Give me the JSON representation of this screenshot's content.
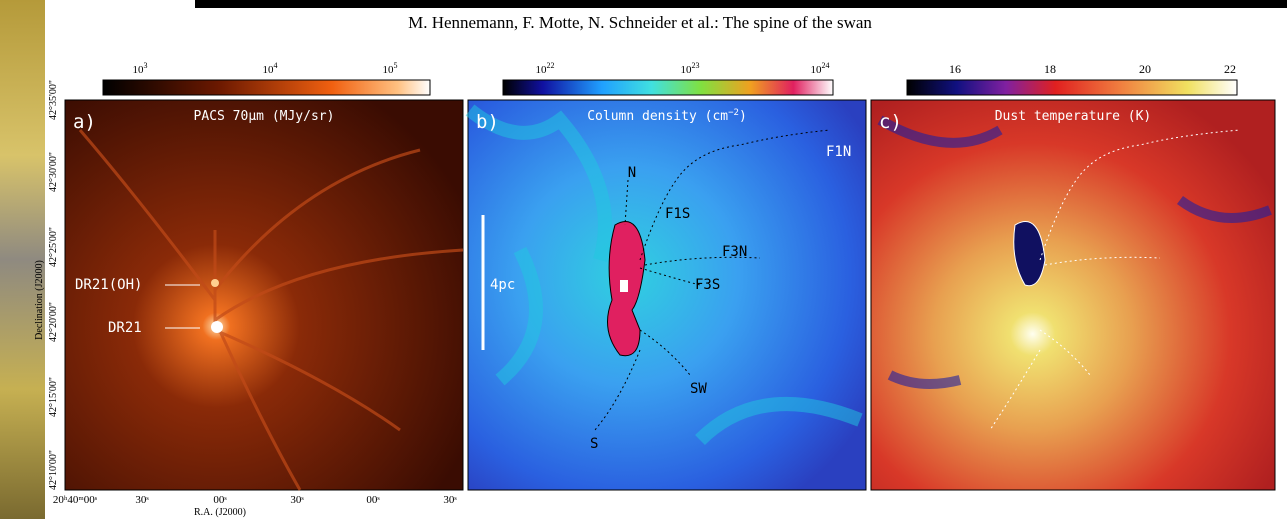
{
  "header": {
    "title": "M. Hennemann, F. Motte, N. Schneider et al.: The spine of the swan"
  },
  "panels": [
    {
      "letter": "a)",
      "title": "PACS 70μm (MJy/sr)",
      "colorbar": [
        {
          "base": "10",
          "exp": "3"
        },
        {
          "base": "10",
          "exp": "4"
        },
        {
          "base": "10",
          "exp": "5"
        }
      ],
      "annotations": [
        "DR21(OH)",
        "DR21"
      ]
    },
    {
      "letter": "b)",
      "title_pre": "Column density (cm",
      "title_sup": "−2",
      "title_post": ")",
      "colorbar": [
        {
          "base": "10",
          "exp": "22"
        },
        {
          "base": "10",
          "exp": "23"
        },
        {
          "base": "10",
          "exp": "24"
        }
      ],
      "annotations": [
        "N",
        "F1S",
        "F1N",
        "F3N",
        "F3S",
        "SW",
        "S",
        "4pc"
      ]
    },
    {
      "letter": "c)",
      "title": "Dust temperature (K)",
      "colorbar": [
        "16",
        "18",
        "20",
        "22"
      ]
    }
  ],
  "axes": {
    "y_label": "Declination (J2000)",
    "y_ticks": [
      "42°35'00\"",
      "42°30'00\"",
      "42°25'00\"",
      "42°20'00\"",
      "42°15'00\"",
      "42°10'00\""
    ],
    "x_label": "R.A. (J2000)",
    "x_ticks": [
      "20ʰ40ᵐ00ˢ",
      "30ˢ",
      "00ˢ",
      "30ˢ",
      "00ˢ",
      "30ˢ"
    ]
  }
}
